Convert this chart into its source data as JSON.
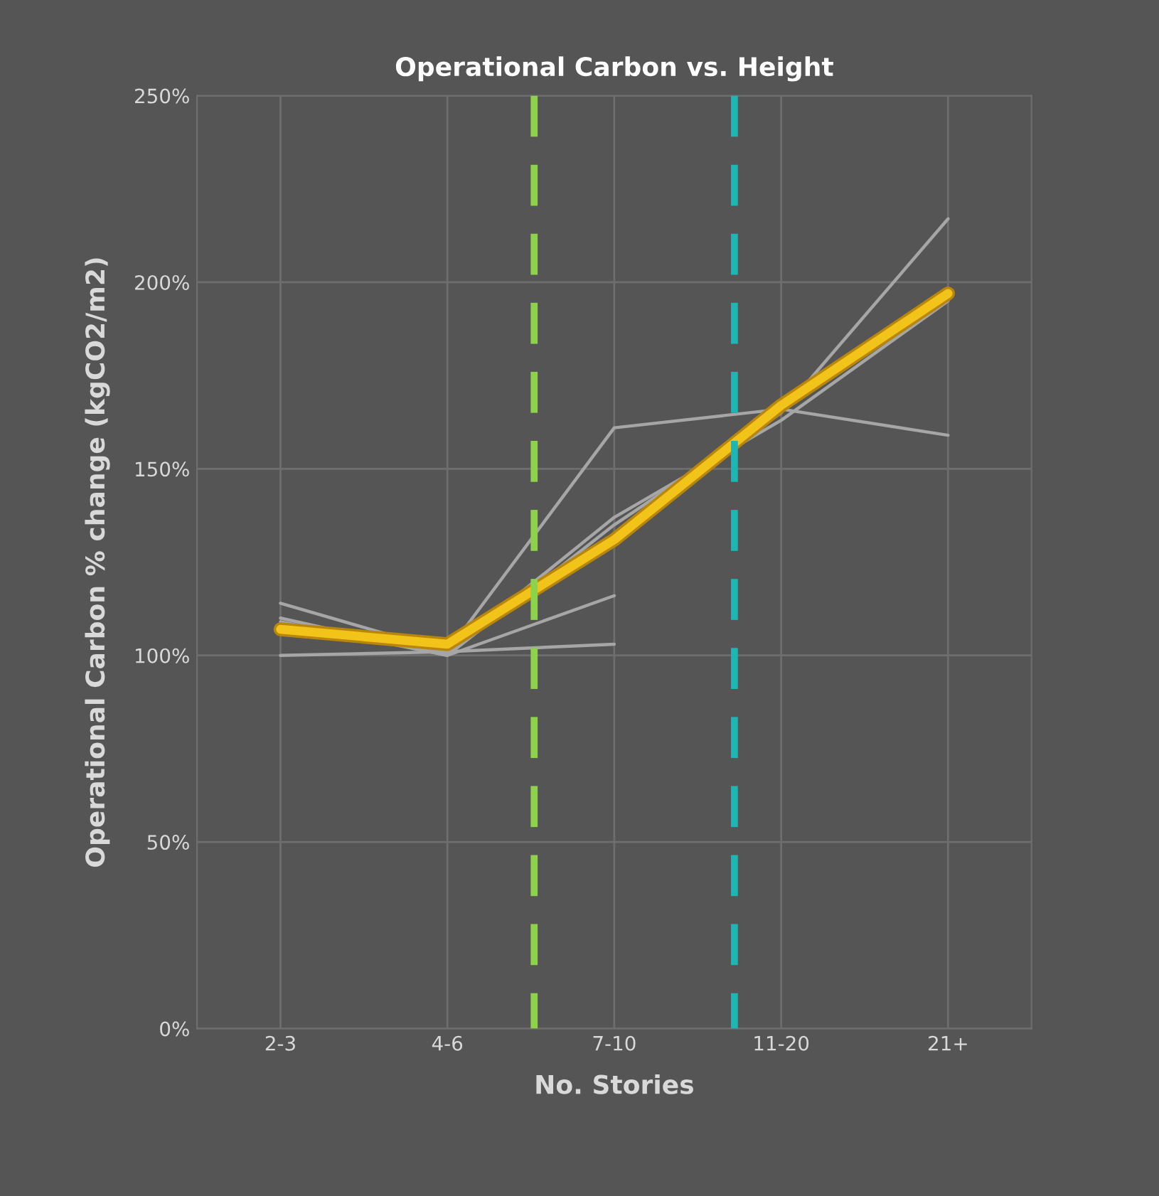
{
  "chart_data": {
    "type": "line",
    "title": "Operational Carbon vs. Height",
    "xlabel": "No. Stories",
    "ylabel": "Operational Carbon % change (kgCO2/m2)",
    "categories": [
      "2-3",
      "4-6",
      "7-10",
      "11-20",
      "21+"
    ],
    "series": [
      {
        "color": "#a6a6a6",
        "values": [
          114,
          101,
          161,
          166,
          159
        ]
      },
      {
        "color": "#a6a6a6",
        "values": [
          109,
          100,
          135,
          165,
          217
        ]
      },
      {
        "color": "#a6a6a6",
        "values": [
          108,
          101,
          137,
          163,
          195
        ]
      },
      {
        "color": "#a6a6a6",
        "values": [
          110,
          100,
          116,
          null,
          null
        ]
      },
      {
        "color": "#a6a6a6",
        "values": [
          100,
          101,
          103,
          null,
          null
        ]
      },
      {
        "color": "#f2c318",
        "values": [
          107,
          103,
          131,
          167,
          197
        ]
      }
    ],
    "ylim": [
      0,
      250
    ],
    "yticks": [
      {
        "value": 0,
        "label": "0%"
      },
      {
        "value": 50,
        "label": "50%"
      },
      {
        "value": 100,
        "label": "100%"
      },
      {
        "value": 150,
        "label": "150%"
      },
      {
        "value": 200,
        "label": "200%"
      },
      {
        "value": 250,
        "label": "250%"
      }
    ],
    "grid": true,
    "marker": "none",
    "line_style": "solid"
  }
}
